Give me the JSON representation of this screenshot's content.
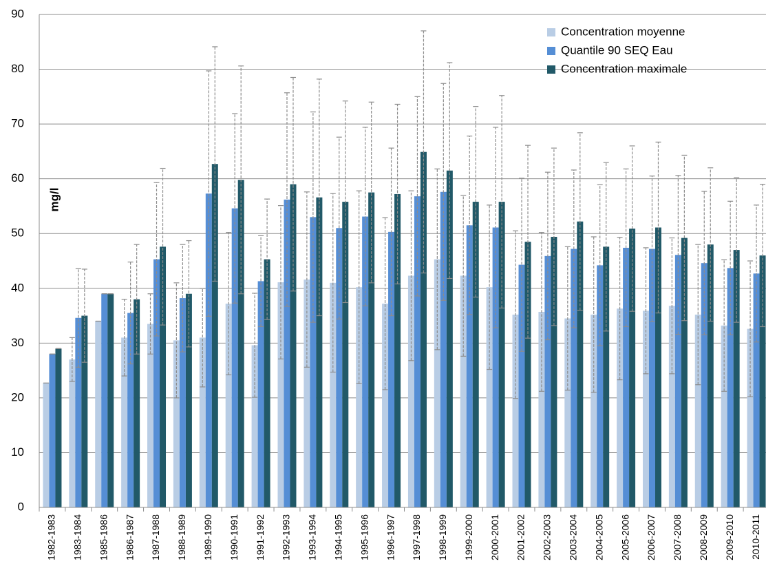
{
  "chart_data": {
    "type": "bar",
    "y_label": "mg/l",
    "categories": [
      "1982-1983",
      "1983-1984",
      "1985-1986",
      "1986-1987",
      "1987-1988",
      "1988-1989",
      "1989-1990",
      "1990-1991",
      "1991-1992",
      "1992-1993",
      "1993-1994",
      "1994-1995",
      "1995-1996",
      "1996-1997",
      "1997-1998",
      "1998-1999",
      "1999-2000",
      "2000-2001",
      "2001-2002",
      "2002-2003",
      "2003-2004",
      "2004-2005",
      "2005-2006",
      "2006-2007",
      "2007-2008",
      "2008-2009",
      "2009-2010",
      "2010-2011"
    ],
    "series": [
      {
        "name": "Concentration moyenne",
        "color": "#b9cde5",
        "values": [
          22.7,
          27,
          34,
          31,
          33.5,
          30.5,
          31,
          37.2,
          29.6,
          41.1,
          41.6,
          41,
          40.2,
          37.2,
          42.3,
          45.3,
          42.3,
          40.2,
          35.2,
          35.7,
          34.5,
          35.2,
          36.3,
          35.9,
          36.8,
          35.2,
          33.2,
          32.6
        ],
        "errors": [
          0,
          4,
          0,
          7,
          5.5,
          10.5,
          9,
          13,
          9.5,
          14,
          16,
          16.3,
          17.6,
          15.7,
          15.5,
          16.5,
          14.7,
          15,
          15.3,
          14.5,
          13.1,
          14.2,
          13,
          11.5,
          12.4,
          12.8,
          12,
          12.4
        ]
      },
      {
        "name": "Quantile 90 SEQ Eau",
        "color": "#558ed5",
        "values": [
          28,
          34.6,
          39,
          35.5,
          45.3,
          38.2,
          57.3,
          54.6,
          41.3,
          56.2,
          53,
          51,
          53.1,
          50.3,
          56.8,
          57.6,
          51.5,
          51.1,
          44.3,
          45.9,
          47.2,
          44.2,
          47.4,
          47.2,
          46.1,
          44.6,
          43.7,
          42.7
        ],
        "errors": [
          0,
          9,
          0,
          9.3,
          14,
          9.8,
          22.4,
          17.3,
          8.3,
          19.5,
          19.2,
          16.6,
          16.3,
          15.3,
          18.2,
          19.8,
          16.3,
          18.3,
          15.8,
          15.3,
          14.4,
          14.7,
          14.4,
          13.3,
          14.5,
          13.1,
          12.2,
          12.5
        ]
      },
      {
        "name": "Concentration maximale",
        "color": "#215968",
        "values": [
          29,
          35,
          39,
          38,
          47.6,
          39,
          62.7,
          59.8,
          45.3,
          59,
          56.6,
          55.8,
          57.5,
          57.2,
          64.9,
          61.5,
          55.8,
          55.8,
          48.5,
          49.4,
          52.2,
          47.6,
          50.9,
          51.1,
          49.2,
          48,
          47,
          46
        ],
        "errors": [
          0,
          8.5,
          0,
          10,
          14.3,
          9.7,
          21.4,
          20.8,
          11,
          19.5,
          21.6,
          18.4,
          16.5,
          16.4,
          22.1,
          19.7,
          17.4,
          19.4,
          17.6,
          16.2,
          16.2,
          15.4,
          15.1,
          15.6,
          15.1,
          14,
          13.2,
          13
        ]
      }
    ],
    "ylim": [
      0,
      90
    ],
    "yticks": [
      0,
      10,
      20,
      30,
      40,
      50,
      60,
      70,
      80,
      90
    ],
    "grid": true,
    "legend": "top-right"
  }
}
